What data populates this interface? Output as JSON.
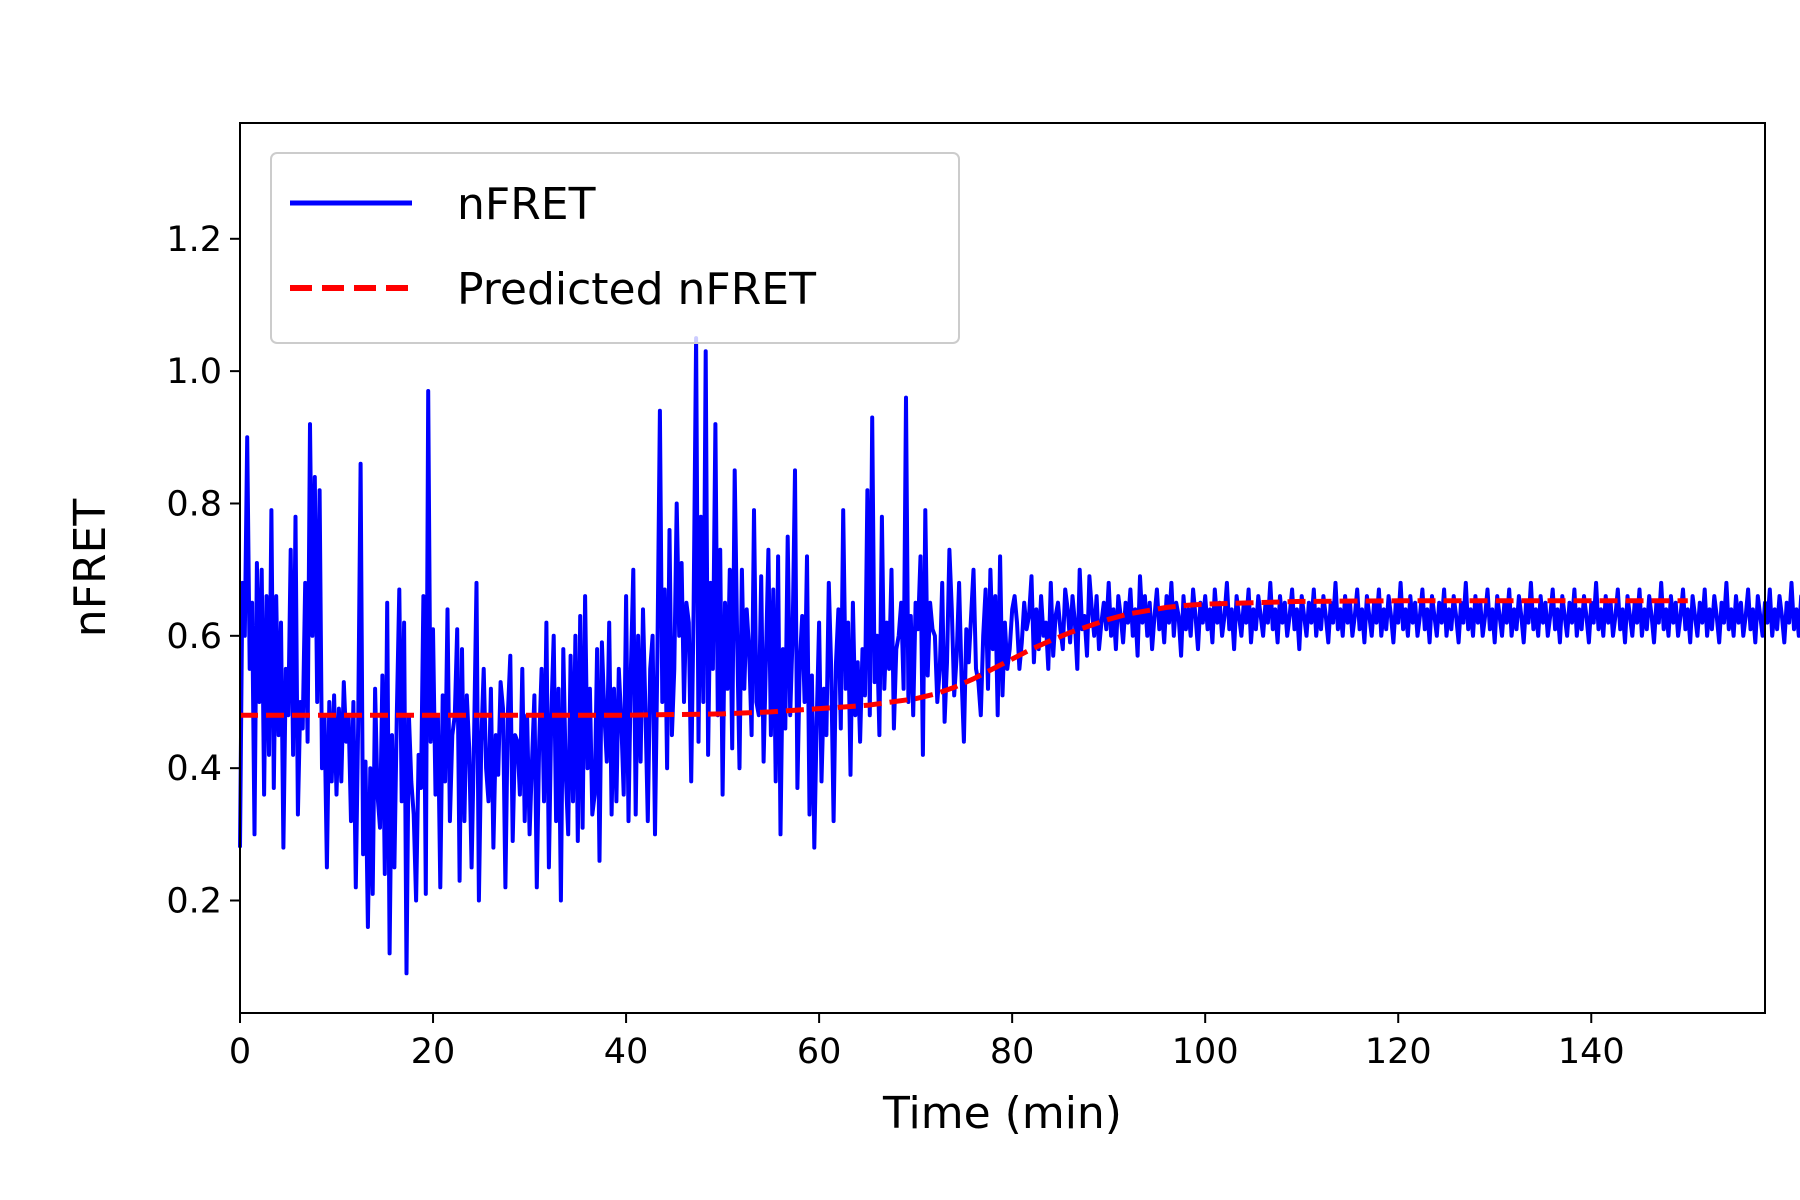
{
  "chart_data": {
    "type": "line",
    "title": "",
    "xlabel": "Time (min)",
    "ylabel": "nFRET",
    "xlim": [
      0,
      158
    ],
    "ylim": [
      0.03,
      1.375
    ],
    "xticks": [
      0,
      20,
      40,
      60,
      80,
      100,
      120,
      140
    ],
    "yticks": [
      0.2,
      0.4,
      0.6,
      0.8,
      1.0,
      1.2
    ],
    "xtick_labels": [
      "0",
      "20",
      "40",
      "60",
      "80",
      "100",
      "120",
      "140"
    ],
    "ytick_labels": [
      "0.2",
      "0.4",
      "0.6",
      "0.8",
      "1.0",
      "1.2"
    ],
    "grid": false,
    "legend_position": "top-left",
    "series": [
      {
        "name": "nFRET",
        "color": "#0000ff",
        "style": "solid",
        "x_start": 0,
        "x_step": 0.25,
        "values": [
          0.28,
          0.68,
          0.6,
          0.9,
          0.55,
          0.65,
          0.3,
          0.71,
          0.5,
          0.7,
          0.36,
          0.66,
          0.42,
          0.79,
          0.37,
          0.66,
          0.45,
          0.62,
          0.28,
          0.55,
          0.48,
          0.73,
          0.42,
          0.78,
          0.33,
          0.5,
          0.46,
          0.68,
          0.44,
          0.92,
          0.6,
          0.84,
          0.5,
          0.82,
          0.4,
          0.48,
          0.25,
          0.5,
          0.38,
          0.51,
          0.36,
          0.49,
          0.38,
          0.53,
          0.44,
          0.48,
          0.32,
          0.5,
          0.22,
          0.47,
          0.86,
          0.27,
          0.41,
          0.16,
          0.4,
          0.21,
          0.52,
          0.36,
          0.31,
          0.54,
          0.24,
          0.65,
          0.12,
          0.45,
          0.25,
          0.48,
          0.67,
          0.35,
          0.62,
          0.09,
          0.48,
          0.38,
          0.33,
          0.2,
          0.42,
          0.37,
          0.66,
          0.21,
          0.97,
          0.44,
          0.61,
          0.36,
          0.48,
          0.22,
          0.51,
          0.38,
          0.64,
          0.32,
          0.45,
          0.48,
          0.61,
          0.23,
          0.58,
          0.32,
          0.51,
          0.43,
          0.25,
          0.45,
          0.68,
          0.2,
          0.44,
          0.55,
          0.4,
          0.35,
          0.52,
          0.28,
          0.45,
          0.39,
          0.53,
          0.49,
          0.22,
          0.48,
          0.57,
          0.29,
          0.45,
          0.44,
          0.36,
          0.55,
          0.32,
          0.48,
          0.3,
          0.41,
          0.51,
          0.22,
          0.44,
          0.55,
          0.35,
          0.62,
          0.25,
          0.48,
          0.6,
          0.32,
          0.52,
          0.2,
          0.58,
          0.39,
          0.3,
          0.57,
          0.35,
          0.6,
          0.29,
          0.63,
          0.31,
          0.66,
          0.4,
          0.52,
          0.33,
          0.36,
          0.58,
          0.26,
          0.59,
          0.48,
          0.41,
          0.62,
          0.33,
          0.52,
          0.35,
          0.55,
          0.47,
          0.36,
          0.66,
          0.32,
          0.55,
          0.7,
          0.33,
          0.6,
          0.41,
          0.64,
          0.49,
          0.32,
          0.55,
          0.6,
          0.3,
          0.57,
          0.94,
          0.5,
          0.67,
          0.4,
          0.76,
          0.45,
          0.55,
          0.8,
          0.6,
          0.71,
          0.5,
          0.65,
          0.62,
          0.38,
          0.64,
          1.05,
          0.44,
          0.78,
          0.5,
          1.03,
          0.42,
          0.68,
          0.55,
          0.92,
          0.48,
          0.73,
          0.36,
          0.65,
          0.52,
          0.7,
          0.43,
          0.85,
          0.6,
          0.4,
          0.7,
          0.52,
          0.64,
          0.58,
          0.45,
          0.79,
          0.5,
          0.48,
          0.69,
          0.41,
          0.57,
          0.73,
          0.45,
          0.67,
          0.38,
          0.72,
          0.3,
          0.58,
          0.46,
          0.75,
          0.48,
          0.6,
          0.85,
          0.37,
          0.56,
          0.63,
          0.5,
          0.72,
          0.33,
          0.54,
          0.28,
          0.47,
          0.62,
          0.38,
          0.52,
          0.45,
          0.68,
          0.55,
          0.32,
          0.56,
          0.64,
          0.46,
          0.79,
          0.52,
          0.62,
          0.39,
          0.65,
          0.48,
          0.56,
          0.44,
          0.58,
          0.51,
          0.82,
          0.48,
          0.93,
          0.53,
          0.6,
          0.45,
          0.78,
          0.52,
          0.62,
          0.55,
          0.7,
          0.46,
          0.58,
          0.6,
          0.65,
          0.52,
          0.96,
          0.5,
          0.63,
          0.48,
          0.65,
          0.61,
          0.72,
          0.42,
          0.79,
          0.54,
          0.65,
          0.61,
          0.6,
          0.5,
          0.55,
          0.68,
          0.47,
          0.56,
          0.73,
          0.64,
          0.51,
          0.57,
          0.68,
          0.54,
          0.44,
          0.61,
          0.56,
          0.63,
          0.7,
          0.55,
          0.53,
          0.48,
          0.6,
          0.67,
          0.52,
          0.7,
          0.58,
          0.66,
          0.48,
          0.72,
          0.51,
          0.62,
          0.55,
          0.58,
          0.64,
          0.66,
          0.62,
          0.55,
          0.59,
          0.65,
          0.61,
          0.63,
          0.69,
          0.56,
          0.64,
          0.58,
          0.66,
          0.6,
          0.62,
          0.55,
          0.68,
          0.57,
          0.63,
          0.65,
          0.61,
          0.58,
          0.67,
          0.64,
          0.59,
          0.66,
          0.62,
          0.55,
          0.7,
          0.61,
          0.63,
          0.57,
          0.69,
          0.64,
          0.6,
          0.66,
          0.58,
          0.62,
          0.65,
          0.61,
          0.68,
          0.6,
          0.64,
          0.58,
          0.66,
          0.63,
          0.59,
          0.65,
          0.62,
          0.67,
          0.6,
          0.64,
          0.57,
          0.69,
          0.62,
          0.66,
          0.6,
          0.65,
          0.58,
          0.63,
          0.67,
          0.61,
          0.64,
          0.59,
          0.66,
          0.62,
          0.68,
          0.6,
          0.65,
          0.63,
          0.57,
          0.66,
          0.61,
          0.64,
          0.6,
          0.67,
          0.63,
          0.58,
          0.65,
          0.62,
          0.66,
          0.61,
          0.64,
          0.59,
          0.67,
          0.62,
          0.65,
          0.6,
          0.63,
          0.68,
          0.61,
          0.64,
          0.58,
          0.66,
          0.63,
          0.6,
          0.65,
          0.62,
          0.67,
          0.59,
          0.64,
          0.61,
          0.66,
          0.63,
          0.6,
          0.65,
          0.62,
          0.68,
          0.61,
          0.64,
          0.59,
          0.66,
          0.62,
          0.65,
          0.6,
          0.63,
          0.67,
          0.61,
          0.64,
          0.58,
          0.66,
          0.63,
          0.6,
          0.65,
          0.62,
          0.67,
          0.6,
          0.64,
          0.61,
          0.66,
          0.63,
          0.59,
          0.65,
          0.62,
          0.68,
          0.61,
          0.64,
          0.6,
          0.66,
          0.62,
          0.65,
          0.6,
          0.63,
          0.67,
          0.61,
          0.64,
          0.59,
          0.66,
          0.63,
          0.6,
          0.65,
          0.62,
          0.67,
          0.6,
          0.64,
          0.61,
          0.66,
          0.63,
          0.59,
          0.65,
          0.62,
          0.68,
          0.61,
          0.64,
          0.6,
          0.66,
          0.62,
          0.65,
          0.6,
          0.63,
          0.67,
          0.61,
          0.64,
          0.59,
          0.66,
          0.63,
          0.6,
          0.65,
          0.62,
          0.67,
          0.6,
          0.64,
          0.61,
          0.66,
          0.63,
          0.59,
          0.65,
          0.62,
          0.68,
          0.61,
          0.64,
          0.6,
          0.66,
          0.62,
          0.65,
          0.6,
          0.63,
          0.67,
          0.61,
          0.64,
          0.59,
          0.66,
          0.63,
          0.6,
          0.65,
          0.62,
          0.67,
          0.6,
          0.64,
          0.61,
          0.66,
          0.63,
          0.59,
          0.65,
          0.62,
          0.68,
          0.61,
          0.64,
          0.6,
          0.66,
          0.62,
          0.65,
          0.6,
          0.63,
          0.67,
          0.61,
          0.64,
          0.59,
          0.66,
          0.63,
          0.6,
          0.65,
          0.62,
          0.67,
          0.6,
          0.64,
          0.61,
          0.66,
          0.63,
          0.59,
          0.65,
          0.62,
          0.68,
          0.61,
          0.64,
          0.6,
          0.66,
          0.62,
          0.65,
          0.6,
          0.63,
          0.67,
          0.61,
          0.64,
          0.59,
          0.66,
          0.63,
          0.6,
          0.65,
          0.62,
          0.67,
          0.6,
          0.64,
          0.61,
          0.66,
          0.63,
          0.59,
          0.65,
          0.62,
          0.68,
          0.61,
          0.64,
          0.6,
          0.66,
          0.62,
          0.65,
          0.6,
          0.63,
          0.67,
          0.61,
          0.64,
          0.59,
          0.66,
          0.63,
          0.6,
          0.65,
          0.62,
          0.67,
          0.6,
          0.64,
          0.61,
          0.66,
          0.63,
          0.59,
          0.65,
          0.62,
          0.68,
          0.61,
          0.64,
          0.6,
          0.66,
          0.62,
          0.65,
          0.6,
          0.63,
          0.67,
          0.61,
          0.64,
          0.59,
          0.66,
          0.63,
          0.6,
          0.65,
          0.62,
          0.67,
          0.6,
          0.64,
          0.61,
          0.66,
          0.63,
          0.59,
          0.65,
          0.62,
          0.68,
          0.61,
          0.64,
          0.6,
          0.66,
          0.62,
          0.65,
          0.6,
          0.63,
          0.67,
          0.61,
          0.64,
          0.59,
          0.66,
          0.63,
          0.6,
          0.65,
          0.62,
          0.67,
          0.6,
          0.64,
          0.61,
          0.66,
          0.63,
          0.59,
          0.65,
          0.62,
          0.68,
          0.61,
          0.64,
          0.6,
          0.66,
          0.62,
          0.65,
          0.6,
          0.63,
          0.67,
          0.61,
          0.64,
          0.59,
          0.66,
          0.63,
          0.6,
          0.65,
          0.62,
          0.67,
          0.6,
          0.64,
          0.61,
          0.66,
          0.63,
          0.59,
          0.65,
          0.62,
          0.68,
          0.61,
          0.64,
          0.6,
          0.66,
          0.62,
          0.65,
          0.6,
          0.63,
          0.67,
          0.61,
          0.64,
          0.59,
          0.66,
          0.63,
          0.6,
          0.65,
          0.62,
          0.67,
          0.6,
          0.64,
          0.61,
          0.66,
          0.63,
          0.59,
          0.65,
          0.62,
          0.68,
          0.61,
          0.64,
          0.6,
          0.66,
          0.62,
          0.65,
          0.6,
          0.63,
          0.67,
          0.61,
          0.64,
          0.59,
          0.66,
          0.63,
          0.6
        ]
      },
      {
        "name": "Predicted nFRET",
        "color": "#ff0000",
        "style": "dashed",
        "x": [
          0,
          10,
          20,
          30,
          40,
          50,
          55,
          60,
          65,
          70,
          72,
          74,
          76,
          78,
          80,
          82,
          84,
          86,
          88,
          90,
          92,
          94,
          96,
          98,
          100,
          105,
          110,
          120,
          130,
          140,
          150
        ],
        "values": [
          0.48,
          0.48,
          0.48,
          0.48,
          0.48,
          0.482,
          0.485,
          0.49,
          0.495,
          0.505,
          0.512,
          0.522,
          0.535,
          0.55,
          0.565,
          0.58,
          0.593,
          0.605,
          0.615,
          0.625,
          0.633,
          0.638,
          0.643,
          0.646,
          0.648,
          0.65,
          0.652,
          0.653,
          0.653,
          0.653,
          0.653
        ]
      }
    ]
  }
}
